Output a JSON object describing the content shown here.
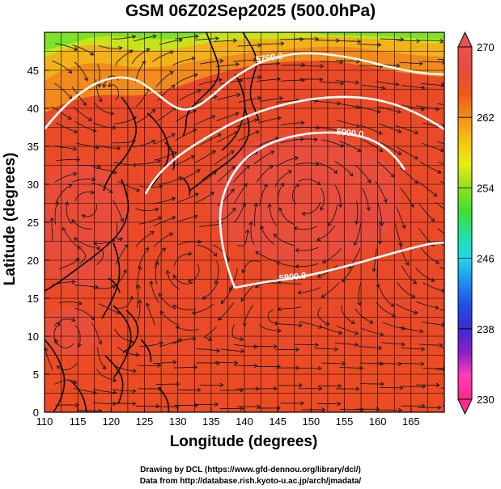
{
  "title": "GSM 06Z02Sep2025 (500.0hPa)",
  "x_axis": {
    "label": "Longitude (degrees)",
    "range": [
      110,
      170
    ],
    "ticks": [
      "110",
      "115",
      "120",
      "125",
      "130",
      "135",
      "140",
      "145",
      "150",
      "155",
      "160",
      "165"
    ]
  },
  "y_axis": {
    "label": "Latitude  (degrees)",
    "range": [
      0,
      50
    ],
    "ticks": [
      "0",
      "5",
      "10",
      "15",
      "20",
      "25",
      "30",
      "35",
      "40",
      "45"
    ]
  },
  "colorbar": {
    "range": [
      230,
      270
    ],
    "labels": [
      "270",
      "262",
      "254",
      "246",
      "238",
      "230"
    ],
    "colors": [
      "#ff2a8a",
      "#ff3cb9",
      "#8b20c7",
      "#3b2bd0",
      "#1f4fe6",
      "#1f8ff4",
      "#1fd6e8",
      "#25e0a0",
      "#3ee030",
      "#8fe11c",
      "#e8ec12",
      "#f7c312",
      "#f58e16",
      "#ef5818",
      "#e84a3a",
      "#e8524e"
    ]
  },
  "contours": {
    "labels": [
      "5760.0",
      "5900.0",
      "5900.0"
    ]
  },
  "credits": {
    "line1": "Drawing by DCL (https://www.gfd-dennou.org/library/dcl/)",
    "line2": "Data from http://database.rish.kyoto-u.ac.jp/arch/jmadata/"
  }
}
